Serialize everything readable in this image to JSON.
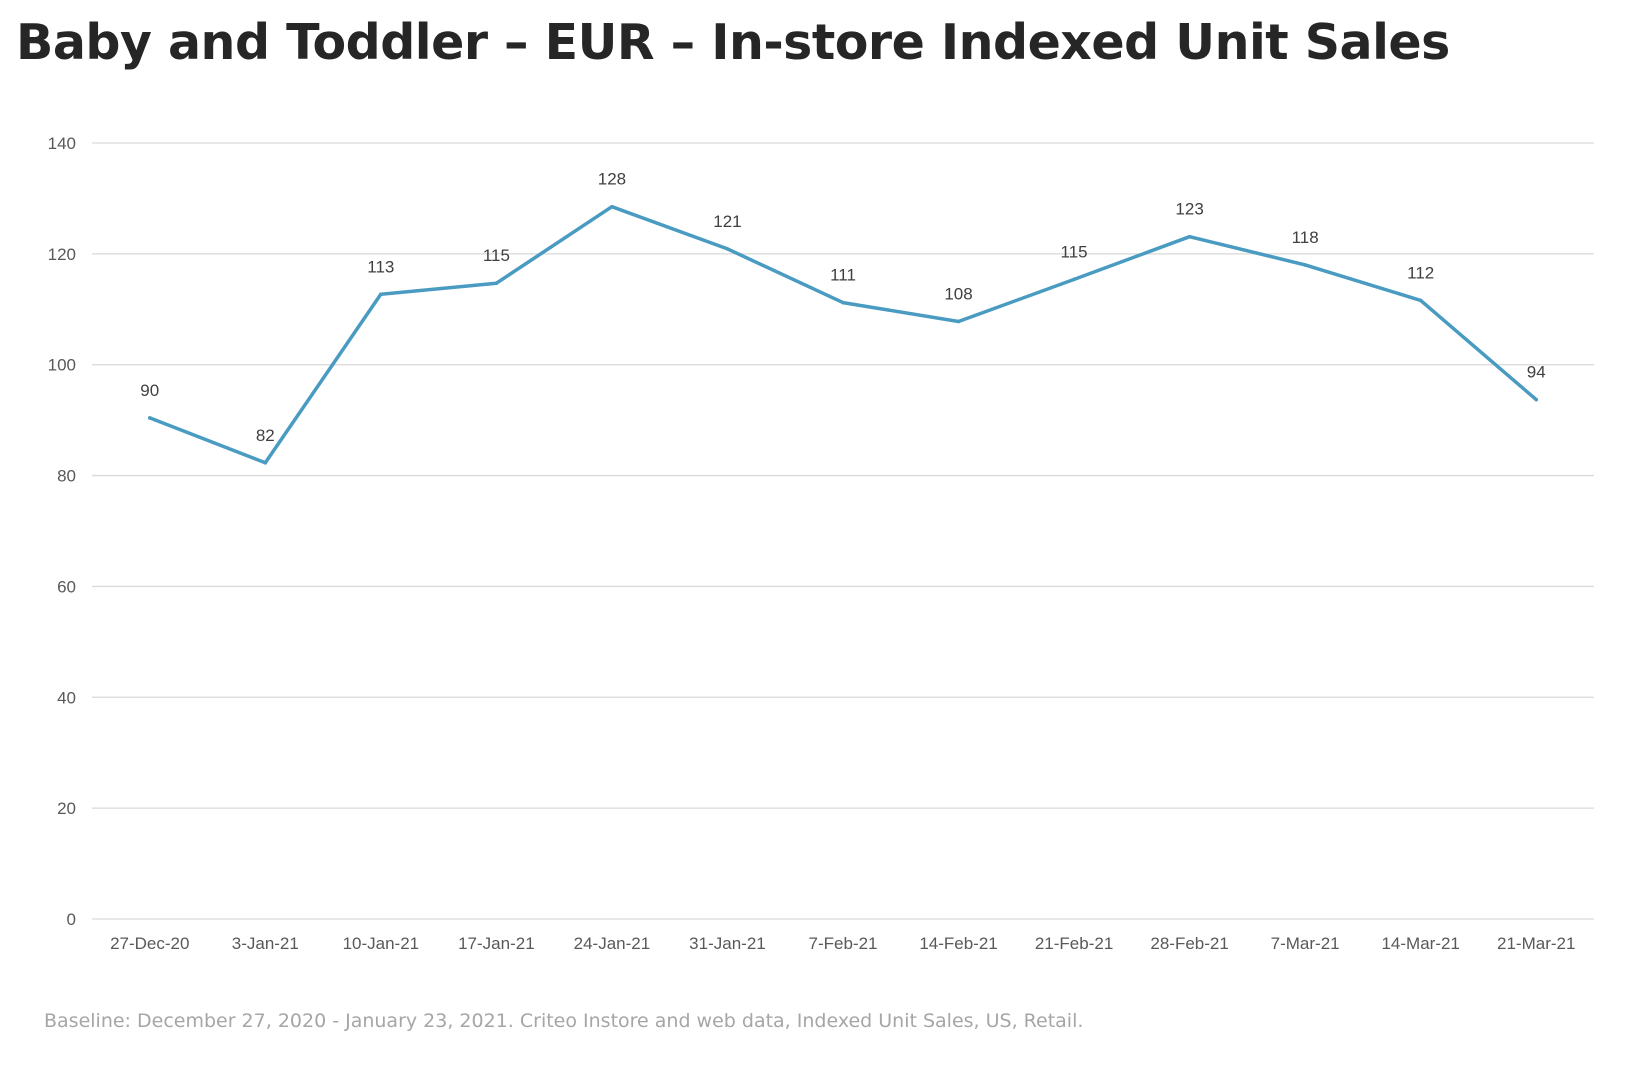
{
  "colors": {
    "series": "#4a9bc2",
    "title": "#262626",
    "footnote": "#a6a6a6"
  },
  "chart_data": {
    "type": "line",
    "title": "Baby and Toddler – EUR – In-store Indexed Unit Sales",
    "xlabel": "",
    "ylabel": "",
    "categories": [
      "27-Dec-20",
      "3-Jan-21",
      "10-Jan-21",
      "17-Jan-21",
      "24-Jan-21",
      "31-Jan-21",
      "7-Feb-21",
      "14-Feb-21",
      "21-Feb-21",
      "28-Feb-21",
      "7-Mar-21",
      "14-Mar-21",
      "21-Mar-21"
    ],
    "series": [
      {
        "values": [
          90.4,
          82.3,
          112.7,
          114.7,
          128.5,
          120.9,
          111.2,
          107.8,
          115.4,
          123.1,
          118.0,
          111.6,
          93.7
        ],
        "labels": [
          "90",
          "82",
          "113",
          "115",
          "128",
          "121",
          "111",
          "108",
          "115",
          "123",
          "118",
          "112",
          "94"
        ]
      }
    ],
    "ylim": [
      0,
      140
    ],
    "yticks": [
      "0",
      "20",
      "40",
      "60",
      "80",
      "100",
      "120",
      "140"
    ],
    "grid": true,
    "legend": "none"
  },
  "footnote": "Baseline: December 27, 2020 - January 23, 2021. Criteo Instore and web data, Indexed Unit Sales, US, Retail."
}
